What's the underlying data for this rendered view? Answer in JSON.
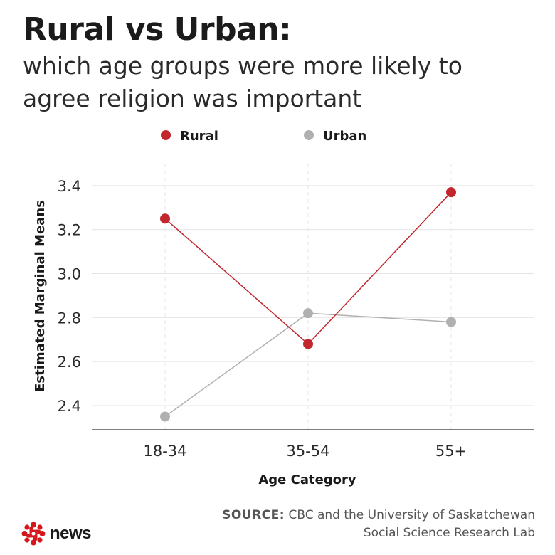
{
  "header": {
    "title": "Rural vs Urban:",
    "subtitle": "which age groups were more likely to agree religion was important"
  },
  "chart_data": {
    "type": "line",
    "categories": [
      "18-34",
      "35-54",
      "55+"
    ],
    "series": [
      {
        "name": "Rural",
        "color": "#c1272d",
        "values": [
          3.25,
          2.68,
          3.37
        ]
      },
      {
        "name": "Urban",
        "color": "#b0b0b0",
        "values": [
          2.35,
          2.82,
          2.78
        ]
      }
    ],
    "xlabel": "Age Category",
    "ylabel": "Estimated Marginal Means",
    "ylim": [
      2.29,
      3.5
    ],
    "yticks": [
      "2.4",
      "2.6",
      "2.8",
      "3.0",
      "3.2",
      "3.4"
    ],
    "grid": true,
    "legend_position": "top"
  },
  "footer": {
    "source_label": "SOURCE:",
    "source_text": "CBC and the University of Saskatchewan Social Science Research Lab",
    "logo_text": "news"
  }
}
